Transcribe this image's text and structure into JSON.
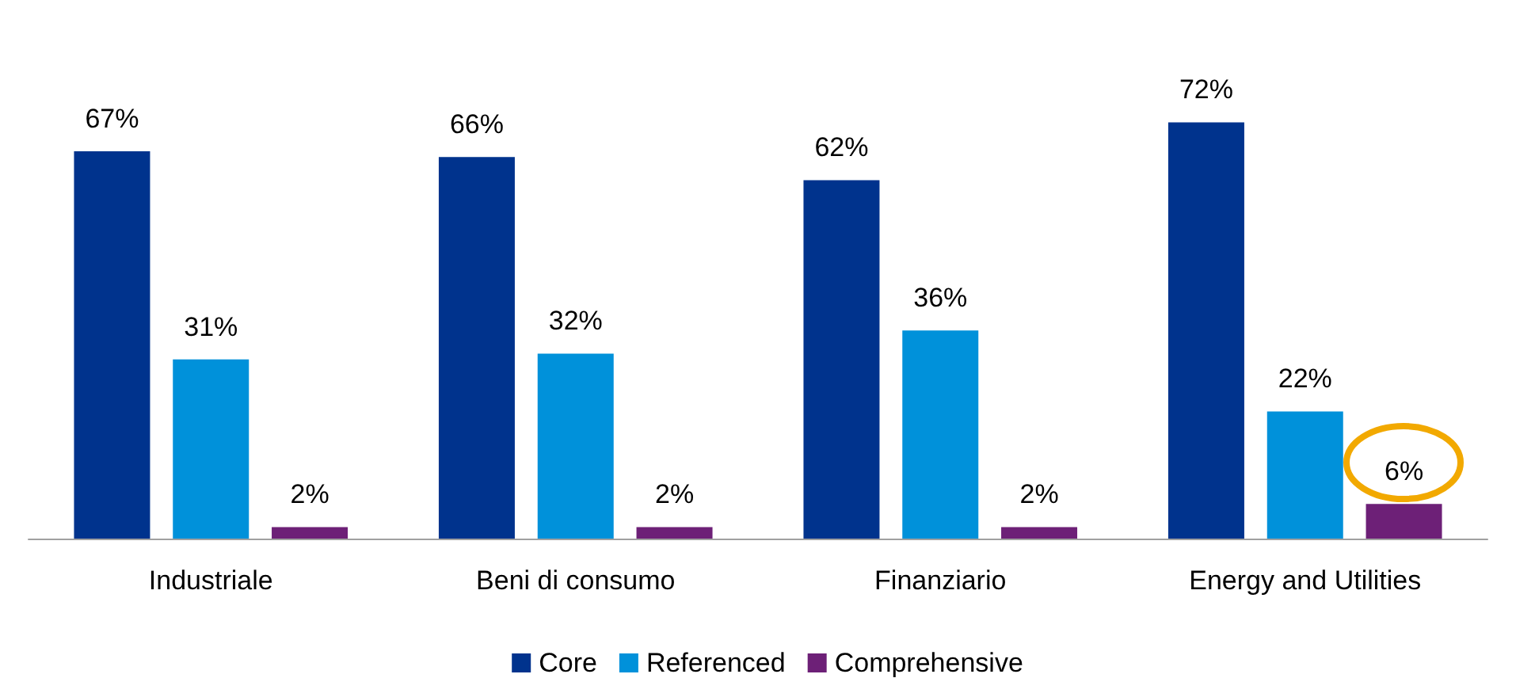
{
  "chart_data": {
    "type": "bar",
    "categories": [
      "Industriale",
      "Beni di consumo",
      "Finanziario",
      "Energy and Utilities"
    ],
    "series": [
      {
        "name": "Core",
        "color": "#00338d",
        "values": [
          67,
          66,
          62,
          72
        ],
        "value_labels": [
          "67%",
          "66%",
          "62%",
          "72%"
        ]
      },
      {
        "name": "Referenced",
        "color": "#0091da",
        "values": [
          31,
          32,
          36,
          22
        ],
        "value_labels": [
          "31%",
          "32%",
          "36%",
          "22%"
        ]
      },
      {
        "name": "Comprehensive",
        "color": "#6d2077",
        "values": [
          2,
          2,
          2,
          6
        ],
        "value_labels": [
          "2%",
          "2%",
          "2%",
          "6%"
        ]
      }
    ],
    "legend": "bottom"
  }
}
